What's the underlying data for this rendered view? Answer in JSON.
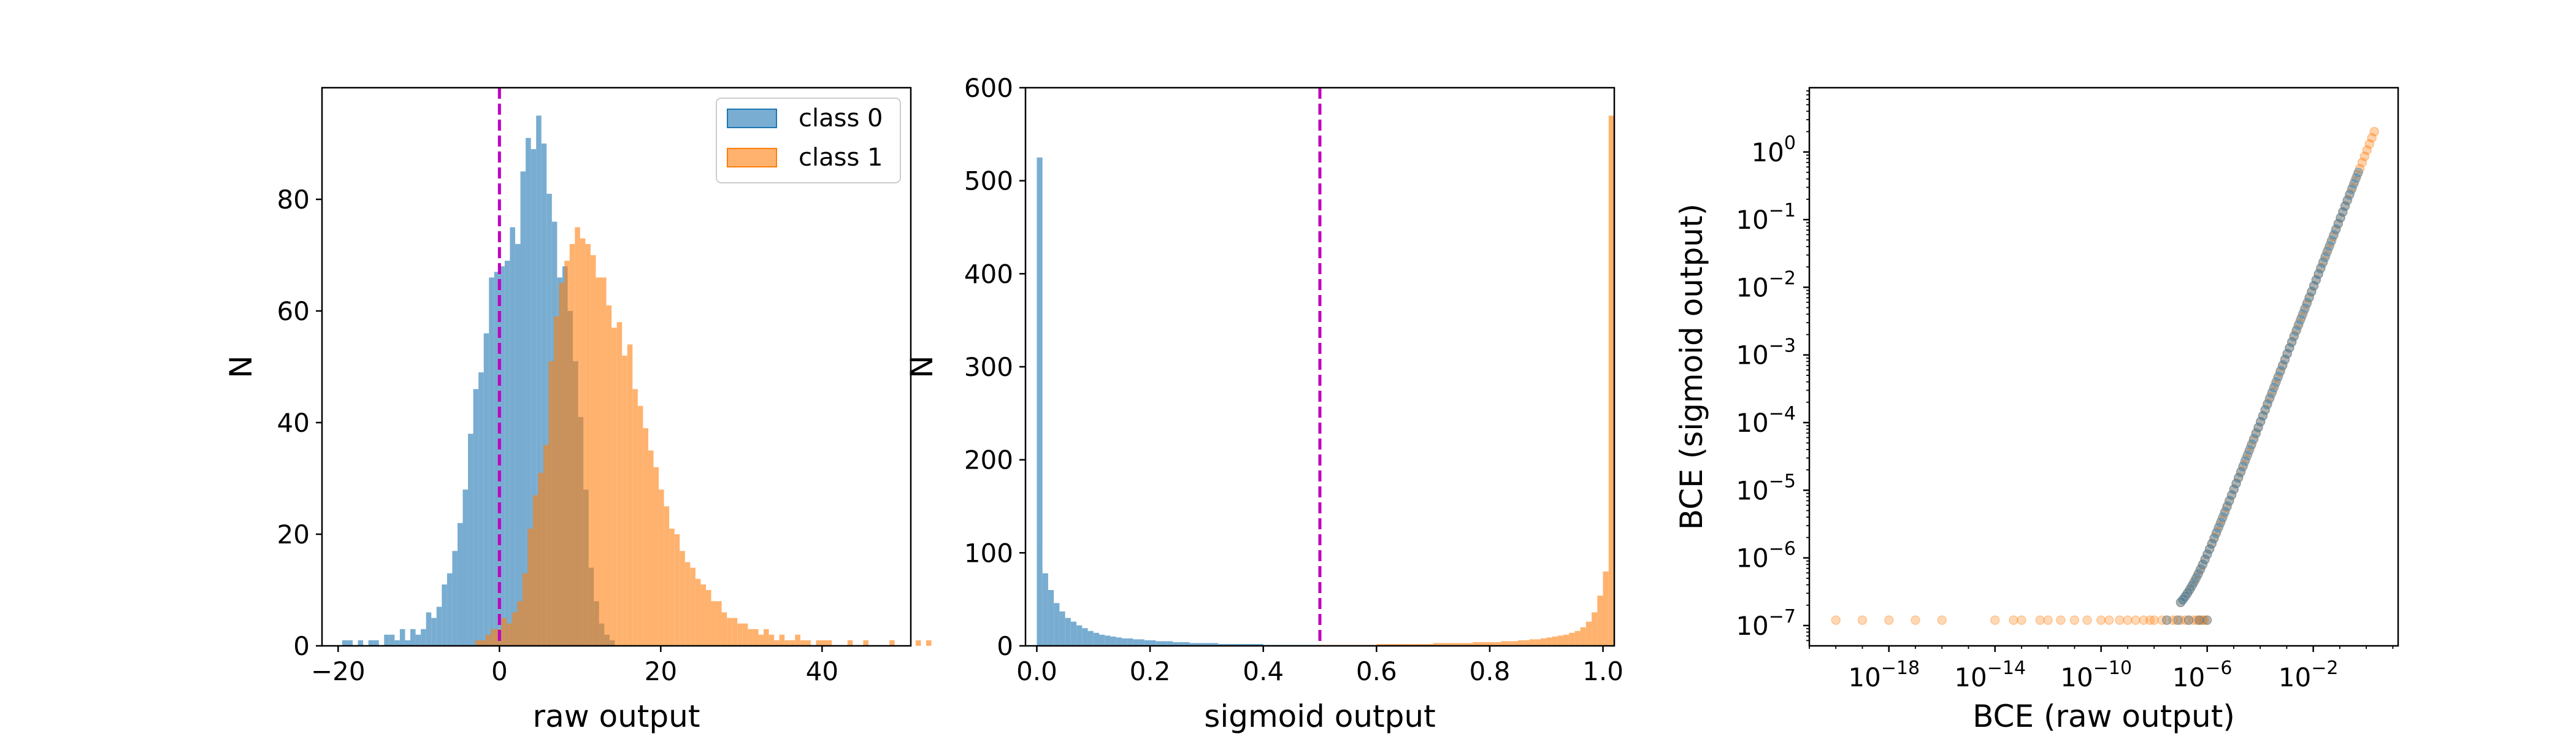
{
  "chart_data": [
    {
      "type": "histogram",
      "xlabel": "raw output",
      "ylabel": "N",
      "xlim": [
        -22,
        51
      ],
      "ylim": [
        0,
        100
      ],
      "xticks": [
        -20,
        0,
        20,
        40
      ],
      "yticks": [
        0,
        20,
        40,
        60,
        80
      ],
      "threshold_x": 0,
      "threshold_color": "#c000c0",
      "legend_position": "upper-right",
      "bin_width": 0.65,
      "series": [
        {
          "name": "class 0",
          "color": "#1f77b4",
          "bins_x_start": -19.5,
          "counts": [
            1,
            1,
            0,
            1,
            0,
            1,
            1,
            0,
            2,
            2,
            1,
            3,
            1,
            3,
            2,
            3,
            6,
            5,
            7,
            11,
            13,
            17,
            22,
            28,
            38,
            46,
            49,
            56,
            66,
            67,
            68,
            69,
            75,
            72,
            85,
            91,
            89,
            95,
            90,
            81,
            76,
            66,
            68,
            60,
            51,
            41,
            28,
            14,
            8,
            4,
            2,
            1
          ]
        },
        {
          "name": "class 1",
          "color": "#ff7f0e",
          "bins_x_start": -3.0,
          "counts": [
            1,
            1,
            2,
            3,
            3,
            5,
            4,
            6,
            8,
            13,
            21,
            27,
            31,
            36,
            51,
            59,
            65,
            69,
            72,
            75,
            73,
            72,
            70,
            66,
            66,
            61,
            57,
            58,
            52,
            54,
            46,
            43,
            39,
            35,
            32,
            28,
            25,
            21,
            20,
            17,
            15,
            14,
            12,
            11,
            10,
            8,
            8,
            6,
            5,
            5,
            4,
            4,
            3,
            3,
            2,
            3,
            2,
            1,
            2,
            1,
            1,
            2,
            1,
            1,
            0,
            1,
            1,
            1,
            0,
            0,
            0,
            1,
            0,
            0,
            1,
            0,
            0,
            0,
            0,
            1,
            0,
            0,
            0,
            0,
            1,
            0,
            1
          ]
        }
      ]
    },
    {
      "type": "histogram",
      "xlabel": "sigmoid output",
      "ylabel": "N",
      "xlim": [
        -0.02,
        1.02
      ],
      "ylim": [
        0,
        600
      ],
      "xticks": [
        "0.0",
        "0.2",
        "0.4",
        "0.6",
        "0.8",
        "1.0"
      ],
      "yticks": [
        0,
        100,
        200,
        300,
        400,
        500,
        600
      ],
      "threshold_x": 0.5,
      "threshold_color": "#c000c0",
      "bin_width": 0.01,
      "series": [
        {
          "name": "class 0",
          "color": "#1f77b4",
          "bins_x_start": 0.0,
          "counts": [
            525,
            78,
            60,
            46,
            37,
            30,
            26,
            22,
            19,
            16,
            14,
            12,
            11,
            10,
            9,
            8,
            8,
            7,
            7,
            6,
            6,
            5,
            5,
            5,
            4,
            4,
            4,
            3,
            3,
            3,
            3,
            3,
            2,
            2,
            2,
            2,
            2,
            2,
            2,
            2,
            1,
            1,
            1,
            1,
            1,
            1,
            1,
            1,
            1,
            1
          ]
        },
        {
          "name": "class 1",
          "color": "#ff7f0e",
          "bins_x_start": 0.5,
          "counts": [
            1,
            1,
            1,
            1,
            1,
            1,
            1,
            1,
            1,
            1,
            2,
            2,
            2,
            2,
            2,
            2,
            2,
            2,
            2,
            2,
            3,
            3,
            3,
            3,
            3,
            3,
            3,
            4,
            4,
            4,
            4,
            4,
            5,
            5,
            5,
            6,
            6,
            7,
            7,
            8,
            9,
            10,
            11,
            12,
            14,
            16,
            20,
            26,
            36,
            54,
            80,
            570
          ]
        }
      ]
    },
    {
      "type": "scatter",
      "xlabel": "BCE (raw output)",
      "ylabel": "BCE (sigmoid output)",
      "xscale": "log",
      "yscale": "log",
      "xlim_exp": [
        -21,
        1.2
      ],
      "ylim_exp": [
        -7.3,
        0.95
      ],
      "xticks_exp": [
        -18,
        -14,
        -10,
        -6,
        -2
      ],
      "yticks_exp": [
        -7,
        -6,
        -5,
        -4,
        -3,
        -2,
        -1,
        0
      ],
      "series": [
        {
          "name": "class 0",
          "color": "#1f77b4",
          "plateau_y": 1.2e-07,
          "plateau_x": [
            3e-08,
            8e-08,
            2e-07,
            5e-07,
            1e-06
          ],
          "diagonal_x_range": [
            1e-07,
            0.5
          ]
        },
        {
          "name": "class 1",
          "color": "#ff7f0e",
          "plateau_y": 1.2e-07,
          "plateau_x": [
            1e-20,
            1e-19,
            1e-18,
            1e-17,
            1e-16,
            1e-14,
            5e-14,
            1e-13,
            5e-13,
            1e-12,
            3e-12,
            1e-11,
            3e-11,
            1e-10,
            2e-10,
            5e-10,
            1e-09,
            2e-09,
            4e-09,
            7e-09,
            1e-08,
            2e-08,
            3e-08,
            5e-08,
            7e-08,
            1e-07,
            1.5e-07,
            2e-07,
            3e-07,
            4e-07,
            5e-07,
            6e-07,
            7e-07,
            8e-07,
            1e-06
          ],
          "diagonal_x_range": [
            1e-07,
            2.0
          ]
        }
      ]
    }
  ]
}
